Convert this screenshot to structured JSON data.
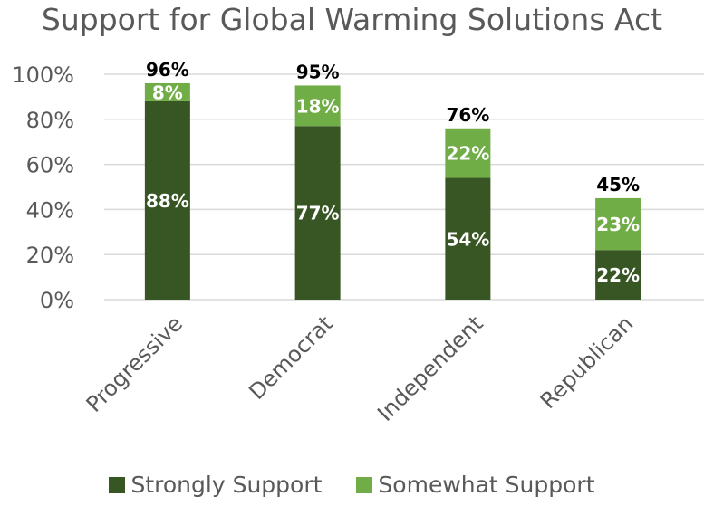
{
  "chart_data": {
    "type": "bar",
    "stacked": true,
    "title": "Support for Global Warming Solutions Act",
    "xlabel": "",
    "ylabel": "",
    "categories": [
      "Progressive",
      "Democrat",
      "Independent",
      "Republican"
    ],
    "series": [
      {
        "name": "Strongly Support",
        "values": [
          88,
          77,
          54,
          22
        ],
        "color": "#375623",
        "labels": [
          "88%",
          "77%",
          "54%",
          "22%"
        ]
      },
      {
        "name": "Somewhat Support",
        "values": [
          8,
          18,
          22,
          23
        ],
        "color": "#70ad47",
        "labels": [
          "8%",
          "18%",
          "22%",
          "23%"
        ]
      }
    ],
    "totals": [
      "96%",
      "95%",
      "76%",
      "45%"
    ],
    "ylim": [
      0,
      100
    ],
    "yticks": [
      "0%",
      "20%",
      "40%",
      "60%",
      "80%",
      "100%"
    ],
    "grid": true,
    "legend_position": "bottom"
  }
}
